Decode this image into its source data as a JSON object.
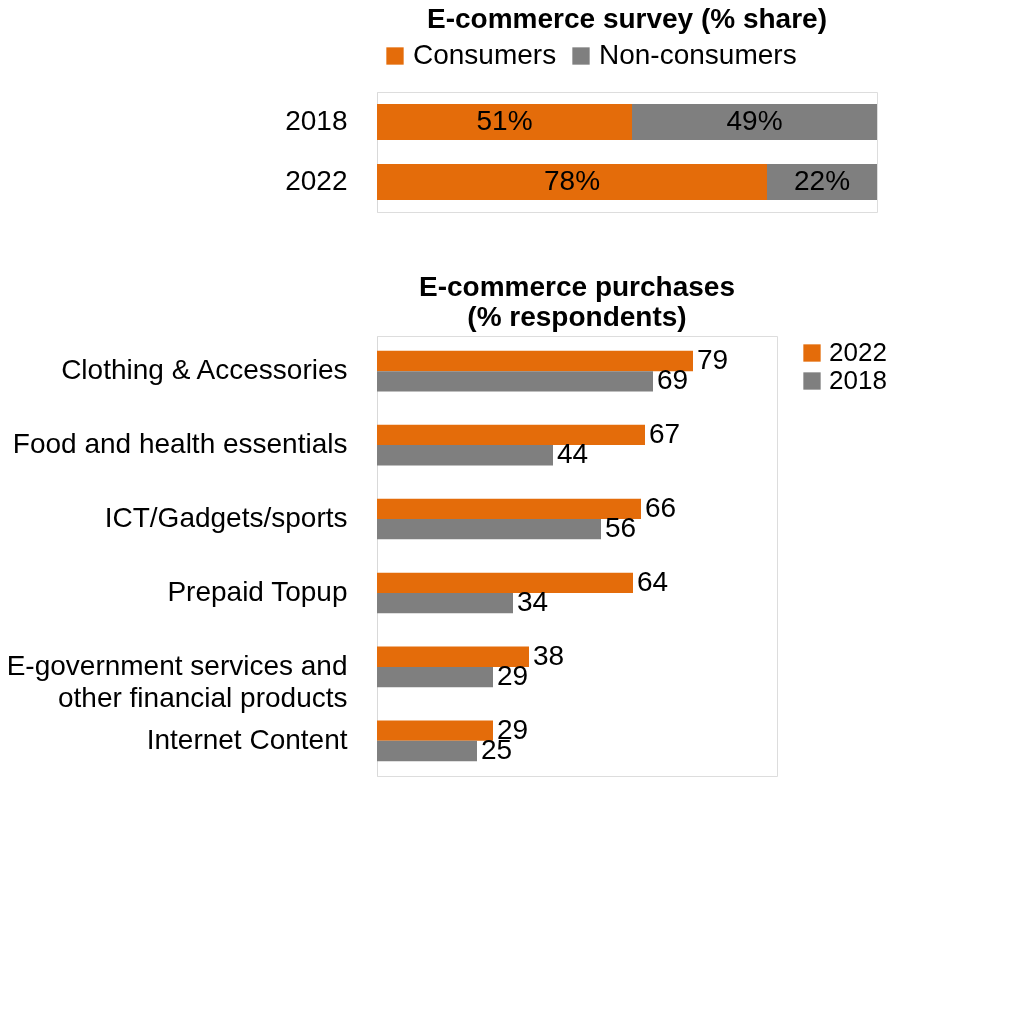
{
  "chart_data": [
    {
      "type": "bar",
      "title": "E-commerce survey (% share)",
      "orientation": "horizontal",
      "stacked": true,
      "categories": [
        "2018",
        "2022"
      ],
      "xlim": [
        0,
        100
      ],
      "tick_labels": "y",
      "legend": "top",
      "grid": false,
      "series": [
        {
          "name": "Consumers",
          "color": "#e46c0a",
          "values": [
            51,
            78
          ],
          "value_labels": [
            "51%",
            "78%"
          ]
        },
        {
          "name": "Non-consumers",
          "color": "#7f7f7f",
          "values": [
            49,
            22
          ],
          "value_labels": [
            "49%",
            "22%"
          ]
        }
      ]
    },
    {
      "type": "bar",
      "title": "E-commerce purchases (% respondents)",
      "orientation": "horizontal",
      "categories": [
        "Clothing & Accessories",
        "Food and health essentials",
        "ICT/Gadgets/sports",
        "Prepaid Topup",
        "E-government services and other financial products",
        "Internet Content"
      ],
      "xlim": [
        0,
        100
      ],
      "tick_labels": "y",
      "legend": "right",
      "grid": false,
      "data_labels": true,
      "series": [
        {
          "name": "2022",
          "color": "#e46c0a",
          "values": [
            79,
            67,
            66,
            64,
            38,
            29
          ]
        },
        {
          "name": "2018",
          "color": "#7f7f7f",
          "values": [
            69,
            44,
            56,
            34,
            29,
            25
          ]
        }
      ]
    }
  ]
}
